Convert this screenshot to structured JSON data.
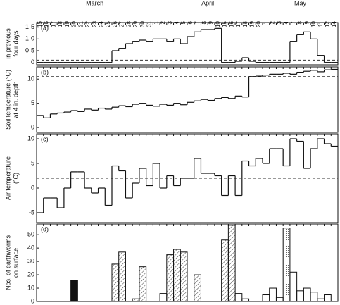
{
  "chart_data": [
    {
      "type": "step",
      "panel_label": "(a)",
      "ylabel": [
        "in previous",
        "four days"
      ],
      "categories": [
        15,
        16,
        17,
        18,
        19,
        20,
        21,
        22,
        23,
        24,
        25,
        26,
        27,
        28,
        29,
        30,
        31,
        1,
        2,
        3,
        4,
        5,
        6,
        7,
        8,
        9,
        10,
        15,
        16,
        17,
        18,
        19,
        20,
        1,
        2,
        3,
        4,
        7,
        8,
        9,
        10,
        11,
        12,
        14
      ],
      "months": [
        "March",
        "April",
        "May"
      ],
      "values": [
        0,
        0,
        0,
        0,
        0,
        0,
        0,
        0,
        0,
        0,
        0,
        0.5,
        0.6,
        0.8,
        0.9,
        0.95,
        0.9,
        1.0,
        1.0,
        0.9,
        1.0,
        0.8,
        1.1,
        1.3,
        1.4,
        1.4,
        1.45,
        0,
        0,
        0.05,
        0.2,
        0.05,
        0,
        0,
        0,
        0,
        0,
        0.9,
        1.2,
        1.3,
        1.0,
        0.3,
        0,
        0
      ],
      "ref_line": 0.1,
      "ylim": [
        -0.1,
        1.7
      ],
      "yticks": [
        0,
        {
          "value": 0.5,
          "label": "0·5"
        },
        {
          "value": 1,
          "label": "1·0"
        },
        {
          "value": 1.5,
          "label": "1·5"
        }
      ]
    },
    {
      "type": "step",
      "panel_label": "(b)",
      "ylabel": [
        "Soil temperature (°C)",
        "at 4 in. depth"
      ],
      "values": [
        2.5,
        2.0,
        2.8,
        3.0,
        3.2,
        3.5,
        3.3,
        3.8,
        3.6,
        4.0,
        3.8,
        4.2,
        4.5,
        4.3,
        4.8,
        5.0,
        4.6,
        4.4,
        4.8,
        4.6,
        5.0,
        4.7,
        5.2,
        5.5,
        5.8,
        5.6,
        6.0,
        6.2,
        6.0,
        6.5,
        6.3,
        10.5,
        10.6,
        10.8,
        11.0,
        11.0,
        11.2,
        11.0,
        11.4,
        11.6,
        11.8,
        11.5,
        11.9,
        12.0
      ],
      "ref_line": 10.5,
      "ylim": [
        -1,
        12.5
      ],
      "yticks": [
        0,
        5,
        10
      ]
    },
    {
      "type": "step",
      "panel_label": "(c)",
      "ylabel": [
        "Air temperature",
        "(°C)"
      ],
      "values": [
        -5,
        -2,
        -2,
        -4,
        0,
        3.3,
        3.3,
        0,
        -1,
        0,
        -3.5,
        4.5,
        3.5,
        -2,
        1,
        4,
        0.5,
        5,
        0,
        2.5,
        0.5,
        2,
        2,
        6,
        3,
        3,
        2.5,
        -1.5,
        2.5,
        -1.5,
        5.5,
        4.5,
        6,
        5,
        8,
        8,
        4.5,
        10,
        9.5,
        4,
        8,
        10,
        9,
        8.5
      ],
      "ref_line": 2,
      "ylim": [
        -7,
        11
      ],
      "yticks": [
        -5,
        0,
        5,
        10
      ]
    },
    {
      "type": "bar",
      "panel_label": "(d)",
      "ylabel": [
        "Nos. of earthworms",
        "on surface"
      ],
      "values": [
        0,
        0,
        0,
        0,
        0,
        16,
        0,
        0,
        0,
        0,
        0,
        28,
        37,
        0,
        2,
        26,
        0,
        0,
        6,
        35,
        39,
        37,
        0,
        20,
        0,
        0,
        0,
        46,
        57,
        6,
        2,
        0,
        0,
        5,
        10,
        3,
        55,
        22,
        8,
        10,
        7,
        2,
        5,
        0
      ],
      "styles": [
        "open",
        "open",
        "open",
        "open",
        "open",
        "solid",
        "open",
        "open",
        "open",
        "open",
        "open",
        "hatch",
        "hatch",
        "open",
        "hatch",
        "hatch",
        "open",
        "open",
        "open",
        "hatch",
        "hatch",
        "hatch",
        "open",
        "hatch",
        "open",
        "open",
        "open",
        "hatch",
        "hatch",
        "open",
        "open",
        "open",
        "open",
        "open",
        "open",
        "open",
        "stipple",
        "open",
        "open",
        "open",
        "open",
        "open",
        "open",
        "open"
      ],
      "ylim": [
        0,
        58
      ],
      "yticks": [
        0,
        10,
        20,
        30,
        40,
        50
      ]
    }
  ]
}
